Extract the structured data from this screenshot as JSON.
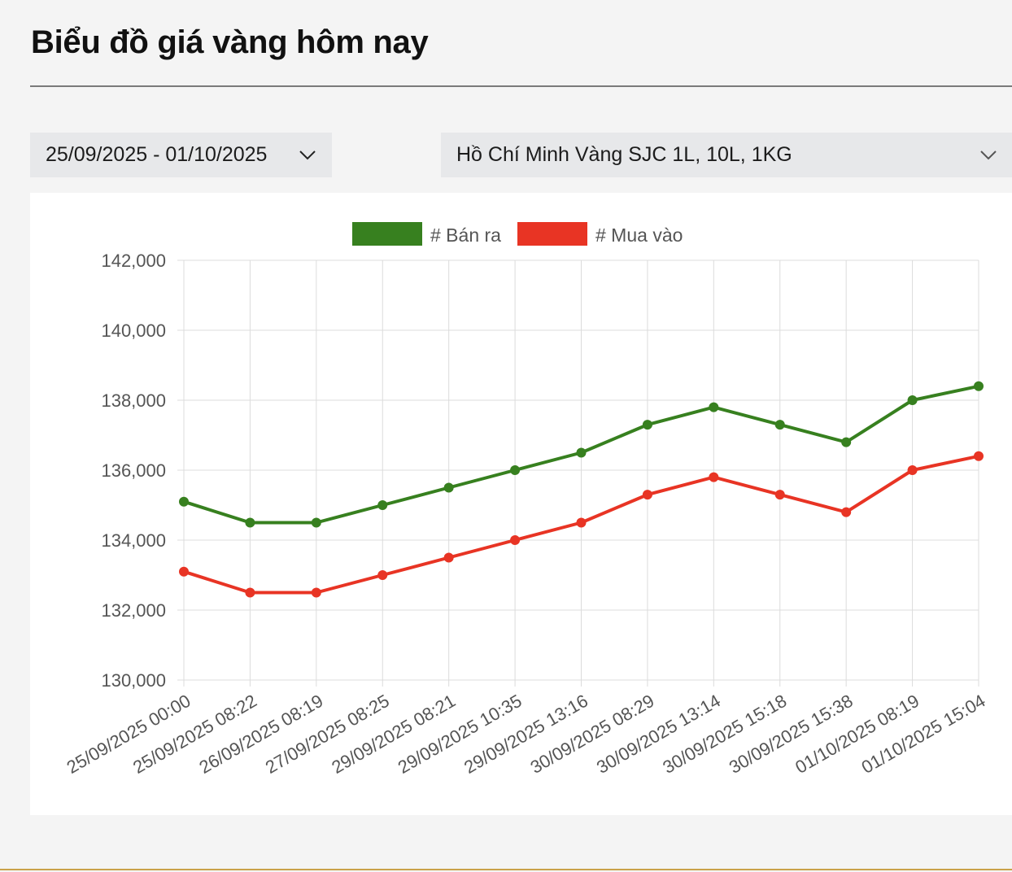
{
  "header": {
    "title": "Biểu đồ giá vàng hôm nay"
  },
  "filters": {
    "date_range": {
      "value": "25/09/2025 - 01/10/2025",
      "icon": "chevron-down-icon"
    },
    "location": {
      "value": "Hồ Chí Minh Vàng SJC 1L, 10L, 1KG",
      "icon": "chevron-down-icon"
    }
  },
  "chart_data": {
    "type": "line",
    "title": "",
    "xlabel": "",
    "ylabel": "",
    "ylim": [
      130000,
      142000
    ],
    "y_ticks": [
      130000,
      132000,
      134000,
      136000,
      138000,
      140000,
      142000
    ],
    "y_tick_labels": [
      "130,000",
      "132,000",
      "134,000",
      "136,000",
      "138,000",
      "140,000",
      "142,000"
    ],
    "grid": true,
    "legend_position": "top-center",
    "categories": [
      "25/09/2025 00:00",
      "25/09/2025 08:22",
      "26/09/2025 08:19",
      "27/09/2025 08:25",
      "29/09/2025 08:21",
      "29/09/2025 10:35",
      "29/09/2025 13:16",
      "30/09/2025 08:29",
      "30/09/2025 13:14",
      "30/09/2025 15:18",
      "30/09/2025 15:38",
      "01/10/2025 08:19",
      "01/10/2025 15:04"
    ],
    "series": [
      {
        "name": "# Bán ra",
        "color": "#37801f",
        "values": [
          135100,
          134500,
          134500,
          135000,
          135500,
          136000,
          136500,
          137300,
          137800,
          137300,
          136800,
          138000,
          138400
        ]
      },
      {
        "name": "# Mua vào",
        "color": "#e83424",
        "values": [
          133100,
          132500,
          132500,
          133000,
          133500,
          134000,
          134500,
          135300,
          135800,
          135300,
          134800,
          136000,
          136400
        ]
      }
    ]
  }
}
